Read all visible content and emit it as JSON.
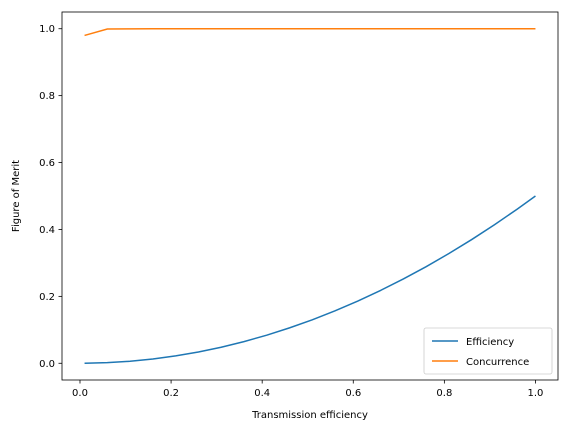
{
  "chart_data": {
    "type": "line",
    "title": "",
    "xlabel": "Transmission efficiency",
    "ylabel": "Figure of Merit",
    "xlim": [
      -0.0395,
      1.0495
    ],
    "ylim": [
      -0.05,
      1.05
    ],
    "xticks": [
      0.0,
      0.2,
      0.4,
      0.6,
      0.8,
      1.0
    ],
    "xtick_labels": [
      "0.0",
      "0.2",
      "0.4",
      "0.6",
      "0.8",
      "1.0"
    ],
    "yticks": [
      0.0,
      0.2,
      0.4,
      0.6,
      0.8,
      1.0
    ],
    "ytick_labels": [
      "0.0",
      "0.2",
      "0.4",
      "0.6",
      "0.8",
      "1.0"
    ],
    "grid": false,
    "legend_position": "lower-right",
    "x": [
      0.01,
      0.06,
      0.11,
      0.16,
      0.21,
      0.26,
      0.31,
      0.36,
      0.41,
      0.46,
      0.51,
      0.56,
      0.61,
      0.66,
      0.71,
      0.76,
      0.81,
      0.86,
      0.91,
      0.96,
      1.0
    ],
    "series": [
      {
        "name": "Efficiency",
        "color": "#1f77b4",
        "values": [
          0.0001,
          0.0018,
          0.006,
          0.0128,
          0.022,
          0.0338,
          0.048,
          0.0648,
          0.084,
          0.1058,
          0.13,
          0.1568,
          0.186,
          0.2178,
          0.252,
          0.2888,
          0.328,
          0.3698,
          0.414,
          0.4608,
          0.5
        ]
      },
      {
        "name": "Concurrence",
        "color": "#ff7f0e",
        "values": [
          0.98,
          0.999,
          0.9995,
          0.9998,
          0.9999,
          1.0,
          1.0,
          1.0,
          1.0,
          1.0,
          1.0,
          1.0,
          1.0,
          1.0,
          1.0,
          1.0,
          1.0,
          1.0,
          1.0,
          1.0,
          1.0
        ]
      }
    ]
  }
}
